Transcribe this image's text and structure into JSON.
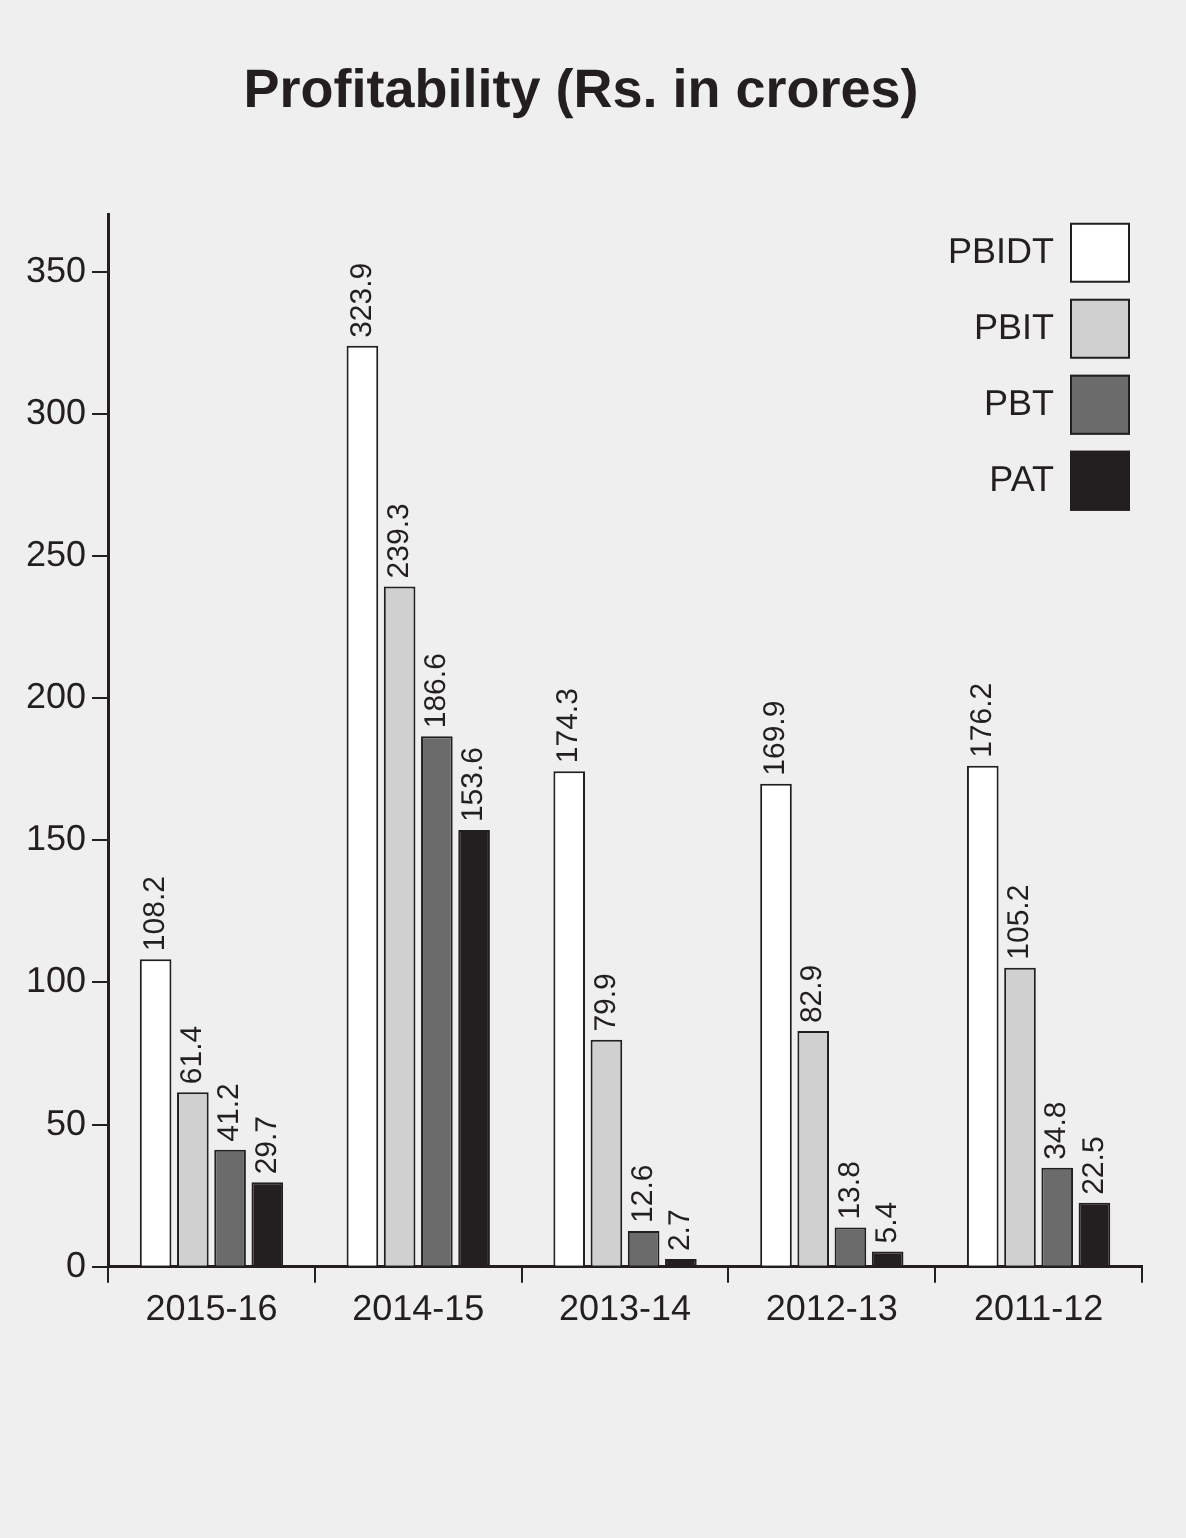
{
  "chart_data": {
    "type": "bar",
    "title": "Profitability (Rs. in crores)",
    "categories": [
      "2015-16",
      "2014-15",
      "2013-14",
      "2012-13",
      "2011-12"
    ],
    "series": [
      {
        "name": "PBIDT",
        "color": "#ffffff",
        "values": [
          108.2,
          323.9,
          174.3,
          169.9,
          176.2
        ]
      },
      {
        "name": "PBIT",
        "color": "#d0d0d0",
        "values": [
          61.4,
          239.3,
          79.9,
          82.9,
          105.2
        ]
      },
      {
        "name": "PBT",
        "color": "#6b6b6b",
        "values": [
          41.2,
          186.6,
          12.6,
          13.8,
          34.8
        ]
      },
      {
        "name": "PAT",
        "color": "#231f20",
        "values": [
          29.7,
          153.6,
          2.7,
          5.4,
          22.5
        ]
      }
    ],
    "ylim": [
      0,
      370
    ],
    "yticks": [
      0,
      50,
      100,
      150,
      200,
      250,
      300,
      350
    ],
    "grid": false,
    "legend": "top right",
    "data_labels": true
  }
}
